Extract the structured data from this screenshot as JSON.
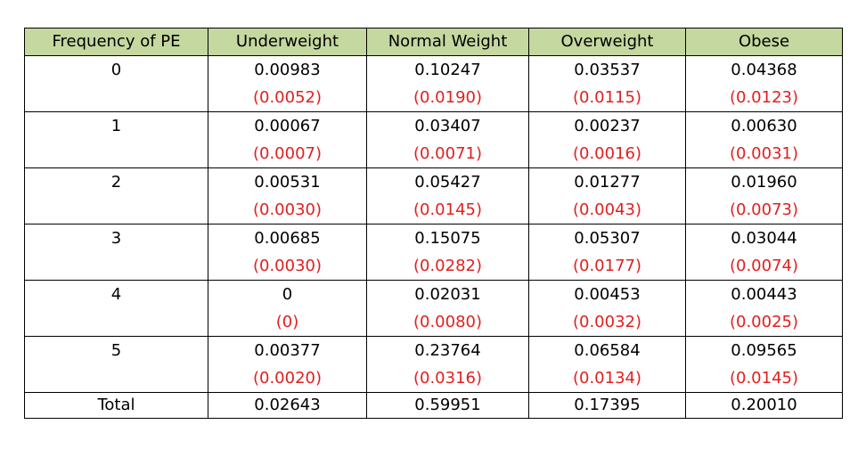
{
  "table": {
    "headers": [
      "Frequency of PE",
      "Underweight",
      "Normal Weight",
      "Overweight",
      "Obese"
    ],
    "rows": [
      {
        "label": "0",
        "values": [
          "0.00983",
          "0.10247",
          "0.03537",
          "0.04368"
        ],
        "se": [
          "(0.0052)",
          "(0.0190)",
          "(0.0115)",
          "(0.0123)"
        ]
      },
      {
        "label": "1",
        "values": [
          "0.00067",
          "0.03407",
          "0.00237",
          "0.00630"
        ],
        "se": [
          "(0.0007)",
          "(0.0071)",
          "(0.0016)",
          "(0.0031)"
        ]
      },
      {
        "label": "2",
        "values": [
          "0.00531",
          "0.05427",
          "0.01277",
          "0.01960"
        ],
        "se": [
          "(0.0030)",
          "(0.0145)",
          "(0.0043)",
          "(0.0073)"
        ]
      },
      {
        "label": "3",
        "values": [
          "0.00685",
          "0.15075",
          "0.05307",
          "0.03044"
        ],
        "se": [
          "(0.0030)",
          "(0.0282)",
          "(0.0177)",
          "(0.0074)"
        ]
      },
      {
        "label": "4",
        "values": [
          "0",
          "0.02031",
          "0.00453",
          "0.00443"
        ],
        "se": [
          "(0)",
          "(0.0080)",
          "(0.0032)",
          "(0.0025)"
        ]
      },
      {
        "label": "5",
        "values": [
          "0.00377",
          "0.23764",
          "0.06584",
          "0.09565"
        ],
        "se": [
          "(0.0020)",
          "(0.0316)",
          "(0.0134)",
          "(0.0145)"
        ]
      }
    ],
    "total": {
      "label": "Total",
      "values": [
        "0.02643",
        "0.59951",
        "0.17395",
        "0.20010"
      ]
    }
  },
  "colors": {
    "header_background": "#c5d89f",
    "standard_error_text": "#e02020",
    "border": "#000000"
  }
}
